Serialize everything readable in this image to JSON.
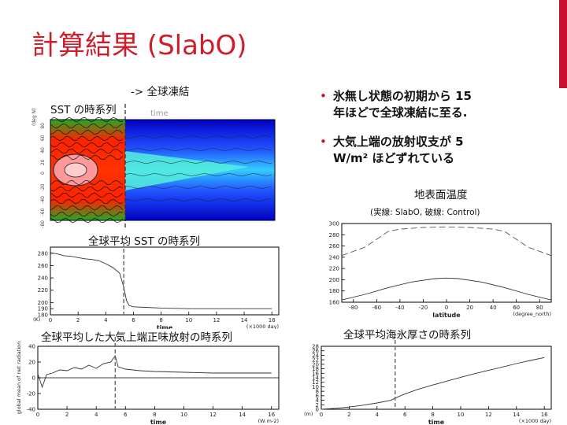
{
  "slide": {
    "title": "計算結果 (SlabO)",
    "annot_freeze": "-> 全球凍結",
    "label_sst_map": "SST の時系列",
    "label_global_sst": "全球平均 SST の時系列",
    "label_toa": "全球平均した大気上端正味放射の時系列",
    "label_surface_temp": "地表面温度",
    "label_surface_temp_sub": "(実線: SlabO, 破線: Control)",
    "label_ice": "全球平均海氷厚さの時系列",
    "bullets": [
      {
        "line1": "氷無し状態の初期から 15",
        "line2": "年ほどで全球凍結に至る."
      },
      {
        "line1": "大気上端の放射収支が 5",
        "line2": "W/m² ほどずれている"
      }
    ]
  },
  "colors": {
    "title": "#cc1f2b",
    "accent": "#c8102e",
    "bullet": "#c8102e",
    "dashed_marker": "#666666"
  },
  "chart_data": [
    {
      "id": "sst-map",
      "type": "heatmap",
      "title": "",
      "xlabel": "time",
      "ylabel": "(deg N)",
      "yticks": [
        "80",
        "60",
        "40",
        "20",
        "0",
        "-20",
        "-40",
        "-60",
        "-80"
      ]
    },
    {
      "id": "global-sst",
      "type": "line",
      "title": "",
      "xlabel": "time",
      "xunit": "(×1000 day)",
      "yunit": "(K)",
      "xlim": [
        0,
        16.5
      ],
      "ylim": [
        180,
        290
      ],
      "xticks": [
        "0",
        "2",
        "4",
        "6",
        "8",
        "10",
        "12",
        "14",
        "16"
      ],
      "yticks": [
        "180",
        "190",
        "200",
        "220",
        "240",
        "260",
        "280"
      ],
      "x": [
        0,
        0.5,
        1,
        1.5,
        2,
        2.5,
        3,
        3.5,
        4,
        4.5,
        5,
        5.3,
        5.5,
        5.7,
        6,
        7,
        8,
        10,
        12,
        14,
        16
      ],
      "y": [
        281,
        279,
        276,
        275,
        273,
        271,
        270,
        268,
        263,
        257,
        248,
        225,
        203,
        195,
        193,
        192,
        191,
        190,
        190,
        190,
        190
      ]
    },
    {
      "id": "toa",
      "type": "line",
      "title": "",
      "xlabel": "time",
      "xunit": "(W m-2)",
      "ylabel": "global mean of net radiation",
      "xlim": [
        0,
        16.5
      ],
      "ylim": [
        -40,
        40
      ],
      "xticks": [
        "0",
        "2",
        "4",
        "6",
        "8",
        "10",
        "12",
        "14",
        "16"
      ],
      "yticks": [
        "-40",
        "-20",
        "0",
        "20",
        "40"
      ],
      "x": [
        0,
        0.3,
        0.6,
        1,
        1.5,
        2,
        2.5,
        3,
        3.5,
        4,
        4.5,
        5,
        5.3,
        5.5,
        6,
        7,
        8,
        10,
        12,
        14,
        16
      ],
      "y": [
        5,
        -12,
        4,
        6,
        10,
        9,
        13,
        11,
        16,
        12,
        18,
        20,
        28,
        14,
        11,
        9,
        8,
        7,
        6,
        6,
        6
      ]
    },
    {
      "id": "surface-temp",
      "type": "line",
      "title": "",
      "xlabel": "latitude",
      "xunit": "(degree_north)",
      "xlim": [
        -90,
        90
      ],
      "ylim": [
        160,
        300
      ],
      "xticks": [
        "-80",
        "-60",
        "-40",
        "-20",
        "0",
        "20",
        "40",
        "60",
        "80"
      ],
      "yticks": [
        "160",
        "180",
        "200",
        "220",
        "240",
        "260",
        "280",
        "300"
      ],
      "series": [
        {
          "name": "SlabO",
          "x": [
            -90,
            -70,
            -50,
            -30,
            -10,
            0,
            10,
            30,
            50,
            70,
            90
          ],
          "y": [
            164,
            174,
            186,
            196,
            202,
            203,
            202,
            196,
            186,
            174,
            164
          ]
        },
        {
          "name": "Control",
          "x": [
            -90,
            -70,
            -60,
            -50,
            -40,
            -20,
            0,
            20,
            40,
            50,
            60,
            70,
            90
          ],
          "y": [
            243,
            258,
            272,
            286,
            290,
            293,
            294,
            293,
            290,
            286,
            272,
            258,
            243
          ]
        }
      ]
    },
    {
      "id": "sea-ice",
      "type": "line",
      "title": "",
      "xlabel": "time",
      "xunit": "(×1000 day)",
      "yunit": "(m)",
      "xlim": [
        0,
        16.5
      ],
      "ylim": [
        0,
        28
      ],
      "xticks": [
        "0",
        "2",
        "4",
        "6",
        "8",
        "10",
        "12",
        "14",
        "16"
      ],
      "yticks": [
        "0",
        "2",
        "4",
        "6",
        "8",
        "10",
        "12",
        "14",
        "16",
        "18",
        "20",
        "22",
        "24",
        "26",
        "28"
      ],
      "x": [
        0,
        1,
        2,
        3,
        4,
        5,
        5.5,
        6,
        7,
        8,
        9,
        10,
        11,
        12,
        13,
        14,
        15,
        16
      ],
      "y": [
        0,
        0.4,
        1,
        1.8,
        2.8,
        4,
        5.5,
        6.8,
        9,
        10.8,
        12.5,
        14.2,
        15.8,
        17.3,
        18.8,
        20.3,
        21.7,
        23
      ]
    }
  ]
}
